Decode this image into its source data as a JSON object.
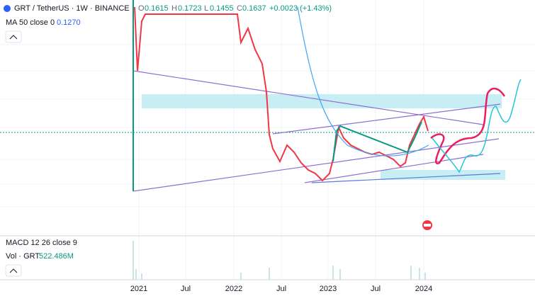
{
  "header": {
    "symbol": "GRT / TetherUS · 1W · BINANCE",
    "open_label": "O",
    "open": "0.1615",
    "high_label": "H",
    "high": "0.1723",
    "low_label": "L",
    "low": "0.1455",
    "close_label": "C",
    "close": "0.1637",
    "change": "+0.0023 (+1.43%)"
  },
  "indicators": {
    "ma_label": "MA 50 close 0",
    "ma_value": "0.1270",
    "macd_label": "MACD 12 26 close 9",
    "vol_label": "Vol · GRT",
    "vol_value": "522.486M"
  },
  "time_axis": {
    "labels": [
      "2021",
      "Jul",
      "2022",
      "Jul",
      "2023",
      "Jul",
      "2024"
    ]
  }
}
